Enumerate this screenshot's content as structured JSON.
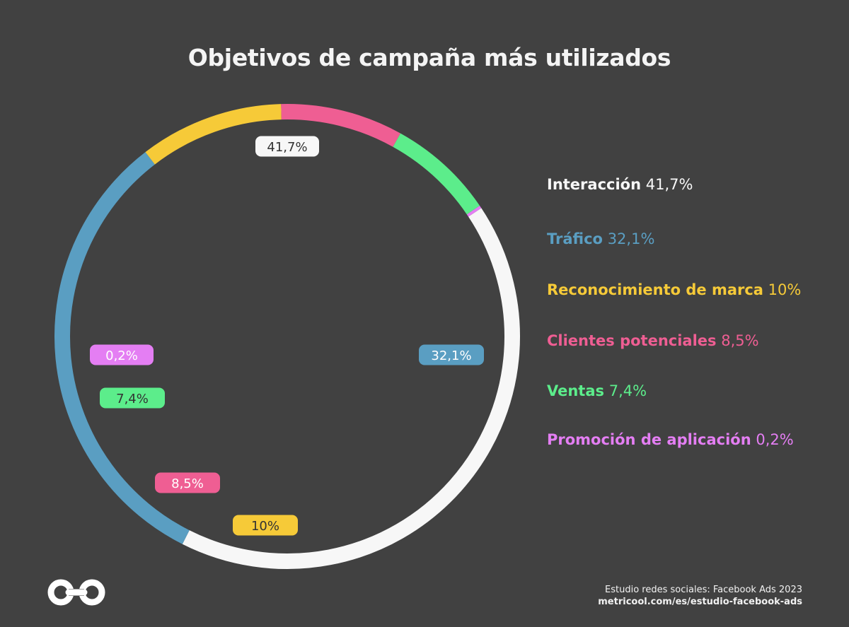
{
  "chart_data": {
    "type": "pie",
    "variant": "donut",
    "title": "Objetivos de campaña más utilizados",
    "categories": [
      "Interacción",
      "Tráfico",
      "Reconocimiento de marca",
      "Clientes potenciales",
      "Ventas",
      "Promoción de aplicación"
    ],
    "values": [
      41.7,
      32.1,
      10,
      8.5,
      7.4,
      0.2
    ],
    "value_labels": [
      "41,7%",
      "32,1%",
      "10%",
      "8,5%",
      "7,4%",
      "0,2%"
    ],
    "colors": [
      "#f7f7f7",
      "#5a9ec2",
      "#f6ca38",
      "#ef5e93",
      "#5ced8b",
      "#e47ef3"
    ],
    "label_text_colors": [
      "#333333",
      "#ffffff",
      "#333333",
      "#ffffff",
      "#333333",
      "#ffffff"
    ],
    "legend_position": "right"
  },
  "footer": {
    "source": "Estudio redes sociales: Facebook Ads 2023",
    "url": "metricool.com/es/estudio-facebook-ads"
  },
  "logo": {
    "icon": "infinity-logo-icon"
  }
}
